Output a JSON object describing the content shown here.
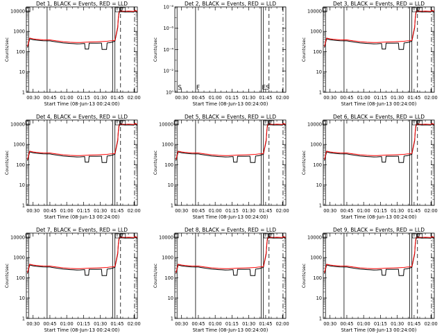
{
  "chart_data": {
    "type": "line",
    "y_scale": "log",
    "legend": "none",
    "grid": false,
    "colors": {
      "events": "#000000",
      "lld": "#ff0000"
    },
    "shared": {
      "xlabel": "Start Time (08-Jun-13 00:24:00)",
      "ylabel": "Counts/sec",
      "x_ticks": [
        "00:30",
        "00:45",
        "01:00",
        "01:15",
        "01:30",
        "01:45",
        "02:00"
      ],
      "x_tick_minutes": [
        30,
        45,
        60,
        75,
        90,
        105,
        120
      ],
      "xlim_minutes": [
        24,
        123
      ],
      "counts_ticks": [
        "1",
        "10",
        "100",
        "1000",
        "10000"
      ],
      "counts_ylim": [
        1,
        16000
      ],
      "vlines": [
        {
          "minute": 26.0,
          "style": "solid"
        },
        {
          "minute": 42.5,
          "style": "solid"
        },
        {
          "minute": 101.0,
          "style": "solid"
        },
        {
          "minute": 103.0,
          "style": "solid"
        },
        {
          "minute": 108.0,
          "style": "dashed"
        },
        {
          "minute": 120.5,
          "style": "dashdot"
        }
      ],
      "events_x": [
        25,
        27,
        30,
        33,
        36,
        39,
        42,
        45,
        48,
        51,
        54,
        57,
        60,
        63,
        66,
        69,
        72,
        75,
        76,
        76.5,
        79.5,
        80,
        84,
        87,
        90,
        91,
        91.5,
        95.5,
        96,
        99,
        101,
        103,
        105.5,
        106,
        106.5,
        107,
        109,
        112,
        115,
        119,
        120,
        121,
        123
      ],
      "events_y": [
        160,
        430,
        390,
        370,
        355,
        345,
        340,
        340,
        320,
        300,
        285,
        270,
        262,
        255,
        248,
        244,
        245,
        250,
        250,
        135,
        135,
        260,
        262,
        264,
        266,
        265,
        130,
        130,
        270,
        280,
        300,
        330,
        1500,
        4000,
        7000,
        9000,
        9500,
        9000,
        9200,
        9000,
        9000,
        10000,
        9000
      ],
      "lld_x": [
        25,
        27,
        30,
        33,
        36,
        39,
        42,
        45,
        48,
        51,
        54,
        57,
        60,
        63,
        66,
        69,
        72,
        75,
        78,
        81,
        84,
        87,
        90,
        93,
        96,
        99,
        101,
        103,
        105.5,
        106,
        106.5,
        107,
        109,
        112,
        115,
        119,
        120,
        121,
        123
      ],
      "lld_y": [
        180,
        470,
        430,
        410,
        395,
        385,
        380,
        380,
        360,
        340,
        325,
        310,
        300,
        292,
        286,
        282,
        284,
        290,
        296,
        300,
        304,
        308,
        312,
        318,
        325,
        340,
        350,
        360,
        1700,
        4500,
        8000,
        10000,
        10000,
        9800,
        10000,
        9800,
        9700,
        11000,
        9700
      ]
    },
    "panels": [
      {
        "title": "Det 1, BLACK = Events, RED = LLD",
        "kind": "counts"
      },
      {
        "title": "Det 2, BLACK = Events, RED = LLD",
        "kind": "empty",
        "empty_ticks": [
          "10⁰",
          "10⁻²",
          "10⁻⁴",
          "10⁻⁶",
          "10⁻⁸"
        ],
        "markers": [
          {
            "label": "S",
            "minute": 26.0
          },
          {
            "label": "F",
            "minute": 42.5
          },
          {
            "label": "ES",
            "minute": 101.0
          }
        ]
      },
      {
        "title": "Det 3, BLACK = Events, RED = LLD",
        "kind": "counts"
      },
      {
        "title": "Det 4, BLACK = Events, RED = LLD",
        "kind": "counts"
      },
      {
        "title": "Det 5, BLACK = Events, RED = LLD",
        "kind": "counts"
      },
      {
        "title": "Det 6, BLACK = Events, RED = LLD",
        "kind": "counts"
      },
      {
        "title": "Det 7, BLACK = Events, RED = LLD",
        "kind": "counts"
      },
      {
        "title": "Det 8, BLACK = Events, RED = LLD",
        "kind": "counts"
      },
      {
        "title": "Det 9, BLACK = Events, RED = LLD",
        "kind": "counts"
      }
    ]
  }
}
